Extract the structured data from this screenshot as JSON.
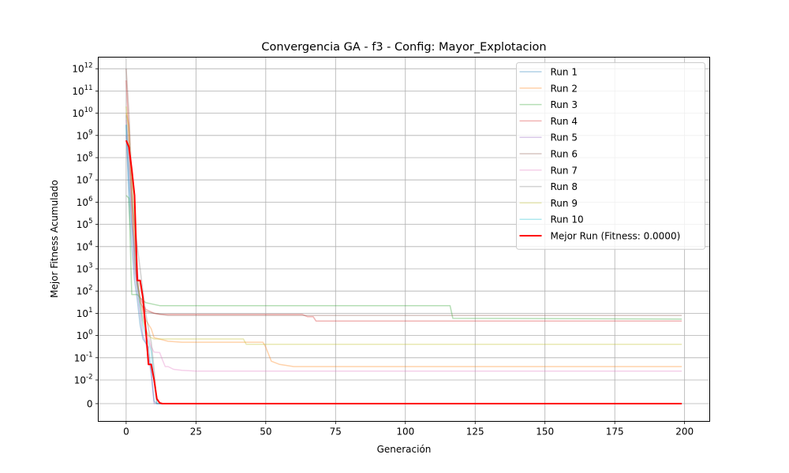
{
  "chart_data": {
    "type": "line",
    "title": "Convergencia GA - f3 - Config: Mayor_Explotacion",
    "xlabel": "Generación",
    "ylabel": "Mejor Fitness Acumulado",
    "xlim": [
      -10,
      209
    ],
    "x_ticks": [
      0,
      25,
      50,
      75,
      100,
      125,
      150,
      175,
      200
    ],
    "y_scale": "symlog",
    "y_ticks": [
      {
        "value": 0,
        "label": "0"
      },
      {
        "value": 0.01,
        "label": "10^-2"
      },
      {
        "value": 0.1,
        "label": "10^-1"
      },
      {
        "value": 1,
        "label": "10^0"
      },
      {
        "value": 10,
        "label": "10^1"
      },
      {
        "value": 100,
        "label": "10^2"
      },
      {
        "value": 1000,
        "label": "10^3"
      },
      {
        "value": 10000,
        "label": "10^4"
      },
      {
        "value": 100000,
        "label": "10^5"
      },
      {
        "value": 1000000,
        "label": "10^6"
      },
      {
        "value": 10000000,
        "label": "10^7"
      },
      {
        "value": 100000000,
        "label": "10^8"
      },
      {
        "value": 1000000000,
        "label": "10^9"
      },
      {
        "value": 10000000000,
        "label": "10^10"
      },
      {
        "value": 100000000000,
        "label": "10^11"
      },
      {
        "value": 1000000000000,
        "label": "10^12"
      }
    ],
    "grid": true,
    "legend_position": "top-right",
    "series": [
      {
        "name": "Run 1",
        "color": "#1f77b4",
        "points": [
          [
            0,
            3000000000.0
          ],
          [
            1,
            1000000.0
          ],
          [
            2,
            10000.0
          ],
          [
            3,
            300
          ],
          [
            4,
            40
          ],
          [
            5,
            3
          ],
          [
            6,
            0.7
          ],
          [
            8,
            0.3
          ],
          [
            9,
            0.02
          ],
          [
            10,
            0.001
          ],
          [
            11,
            0
          ],
          [
            199,
            0
          ]
        ]
      },
      {
        "name": "Run 2",
        "color": "#ff7f0e",
        "points": [
          [
            0,
            10000000000.0
          ],
          [
            1,
            3000000000.0
          ],
          [
            2,
            1000000.0
          ],
          [
            3,
            10000.0
          ],
          [
            4,
            200
          ],
          [
            5,
            40
          ],
          [
            7,
            5
          ],
          [
            9,
            2
          ],
          [
            10,
            0.8
          ],
          [
            15,
            0.55
          ],
          [
            20,
            0.5
          ],
          [
            40,
            0.5
          ],
          [
            49,
            0.5
          ],
          [
            50,
            0.3
          ],
          [
            52,
            0.07
          ],
          [
            55,
            0.05
          ],
          [
            60,
            0.04
          ],
          [
            199,
            0.04
          ]
        ]
      },
      {
        "name": "Run 3",
        "color": "#2ca02c",
        "points": [
          [
            0,
            2000000.0
          ],
          [
            1,
            1500000.0
          ],
          [
            2,
            70
          ],
          [
            3,
            70
          ],
          [
            4,
            70
          ],
          [
            5,
            50
          ],
          [
            7,
            30
          ],
          [
            10,
            25
          ],
          [
            12,
            22
          ],
          [
            116,
            22
          ],
          [
            117,
            6
          ],
          [
            199,
            5.5
          ]
        ]
      },
      {
        "name": "Run 4",
        "color": "#d62728",
        "points": [
          [
            0,
            300000000000.0
          ],
          [
            1,
            1000000000.0
          ],
          [
            2,
            1000000.0
          ],
          [
            3,
            2000
          ],
          [
            4,
            200
          ],
          [
            5,
            50
          ],
          [
            7,
            15
          ],
          [
            10,
            10
          ],
          [
            12,
            9
          ],
          [
            63,
            9
          ],
          [
            65,
            7
          ],
          [
            67,
            7
          ],
          [
            68,
            4.5
          ],
          [
            199,
            4.5
          ]
        ]
      },
      {
        "name": "Run 5",
        "color": "#9467bd",
        "points": [
          [
            0,
            1000000000.0
          ],
          [
            1,
            10000000.0
          ],
          [
            2,
            100000.0
          ],
          [
            3,
            1000
          ],
          [
            4,
            100
          ],
          [
            5,
            10
          ],
          [
            6,
            1
          ],
          [
            7,
            0.5
          ],
          [
            8,
            0.1
          ],
          [
            9,
            0.02
          ],
          [
            10,
            0
          ],
          [
            199,
            0
          ]
        ]
      },
      {
        "name": "Run 6",
        "color": "#8c564b",
        "points": [
          [
            0,
            1000000000000.0
          ],
          [
            1,
            10000000000.0
          ],
          [
            2,
            10000000.0
          ],
          [
            3,
            30000.0
          ],
          [
            4,
            300
          ],
          [
            5,
            30
          ],
          [
            7,
            12
          ],
          [
            10,
            10
          ],
          [
            15,
            8
          ],
          [
            60,
            8
          ],
          [
            199,
            8
          ]
        ]
      },
      {
        "name": "Run 7",
        "color": "#e377c2",
        "points": [
          [
            0,
            5000000000.0
          ],
          [
            1,
            100000000.0
          ],
          [
            2,
            100000.0
          ],
          [
            3,
            10000.0
          ],
          [
            4,
            1000
          ],
          [
            5,
            50
          ],
          [
            6,
            8
          ],
          [
            7,
            2
          ],
          [
            8,
            0.8
          ],
          [
            9,
            0.3
          ],
          [
            10,
            0.18
          ],
          [
            12,
            0.17
          ],
          [
            13,
            0.08
          ],
          [
            14,
            0.04
          ],
          [
            15,
            0.04
          ],
          [
            17,
            0.03
          ],
          [
            20,
            0.027
          ],
          [
            25,
            0.025
          ],
          [
            199,
            0.025
          ]
        ]
      },
      {
        "name": "Run 8",
        "color": "#7f7f7f",
        "points": [
          [
            0,
            8000000000.0
          ],
          [
            1,
            100000000.0
          ],
          [
            2,
            1000000.0
          ],
          [
            3,
            100000.0
          ],
          [
            4,
            10000.0
          ],
          [
            5,
            1000
          ],
          [
            6,
            100
          ],
          [
            7,
            10
          ],
          [
            8,
            2
          ],
          [
            9,
            0.5
          ],
          [
            10,
            0.03
          ],
          [
            11,
            0
          ],
          [
            199,
            0
          ]
        ]
      },
      {
        "name": "Run 9",
        "color": "#bcbd22",
        "points": [
          [
            0,
            20000000000.0
          ],
          [
            1,
            1000000000.0
          ],
          [
            2,
            10000000.0
          ],
          [
            3,
            100000.0
          ],
          [
            4,
            500
          ],
          [
            5,
            30
          ],
          [
            6,
            5
          ],
          [
            7,
            2
          ],
          [
            8,
            1
          ],
          [
            9,
            0.8
          ],
          [
            10,
            0.7
          ],
          [
            42,
            0.7
          ],
          [
            43,
            0.4
          ],
          [
            199,
            0.4
          ]
        ]
      },
      {
        "name": "Run 10",
        "color": "#17becf",
        "points": [
          [
            0,
            3000000000.0
          ],
          [
            1,
            10000000.0
          ],
          [
            2,
            100000.0
          ],
          [
            3,
            5000
          ],
          [
            4,
            200
          ],
          [
            5,
            20
          ],
          [
            6,
            3
          ],
          [
            7,
            1
          ],
          [
            8,
            0.5
          ],
          [
            9,
            0.2
          ],
          [
            10,
            0.01
          ],
          [
            11,
            0
          ],
          [
            199,
            0
          ]
        ]
      },
      {
        "name": "Mejor Run (Fitness: 0.0000)",
        "color": "#ff0000",
        "best": true,
        "points": [
          [
            0,
            600000000.0
          ],
          [
            1,
            300000000.0
          ],
          [
            2,
            30000000.0
          ],
          [
            3,
            2000000.0
          ],
          [
            4,
            300
          ],
          [
            5,
            300
          ],
          [
            6,
            50
          ],
          [
            7,
            2
          ],
          [
            8,
            0.05
          ],
          [
            9,
            0.05
          ],
          [
            10,
            0.01
          ],
          [
            11,
            0.002
          ],
          [
            12,
            0.0003
          ],
          [
            13,
            0
          ],
          [
            199,
            0
          ]
        ]
      }
    ]
  }
}
